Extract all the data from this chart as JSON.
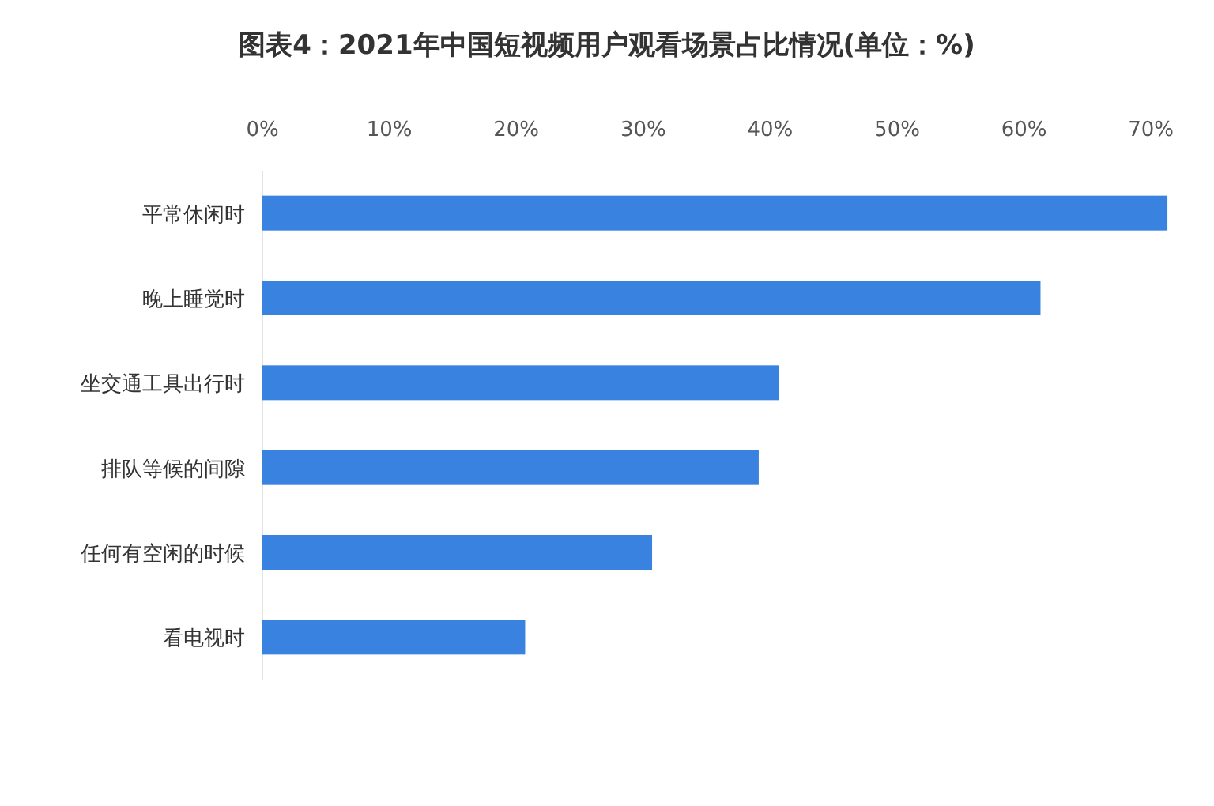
{
  "chart_data": {
    "type": "bar",
    "orientation": "horizontal",
    "title": "图表4：2021年中国短视频用户观看场景占比情况(单位：%)",
    "categories": [
      "平常休闲时",
      "晚上睡觉时",
      "坐交通工具出行时",
      "排队等候的间隙",
      "任何有空闲的时候",
      "看电视时"
    ],
    "values": [
      71.3,
      61.3,
      40.7,
      39.1,
      30.7,
      20.7
    ],
    "color": "#3a82e0",
    "xlim": [
      0,
      72
    ],
    "xticks": [
      {
        "value": 0,
        "label": "0%"
      },
      {
        "value": 10,
        "label": "10%"
      },
      {
        "value": 20,
        "label": "20%"
      },
      {
        "value": 30,
        "label": "30%"
      },
      {
        "value": 40,
        "label": "40%"
      },
      {
        "value": 50,
        "label": "50%"
      },
      {
        "value": 60,
        "label": "60%"
      },
      {
        "value": 70,
        "label": "70%"
      }
    ],
    "data_labels": false
  }
}
